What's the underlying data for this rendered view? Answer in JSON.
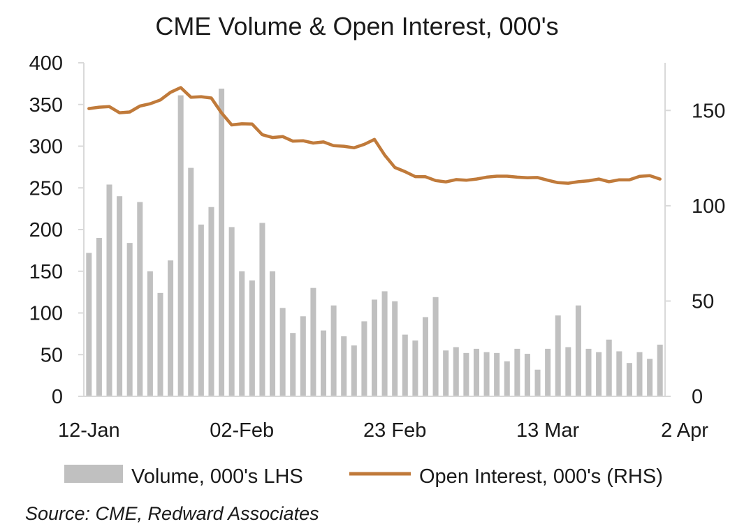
{
  "chart_data": {
    "type": "bar+line",
    "title": "CME Volume & Open Interest, 000's",
    "source": "Source: CME, Redward Associates",
    "x_tick_labels": [
      "12-Jan",
      "02-Feb",
      "23 Feb",
      "13 Mar",
      "2 Apr"
    ],
    "x_tick_index": [
      0,
      15,
      30,
      45,
      60
    ],
    "y_left": {
      "ylim": [
        0,
        400
      ],
      "ticks": [
        "0",
        "50",
        "100",
        "150",
        "200",
        "250",
        "300",
        "350",
        "400"
      ]
    },
    "y_right": {
      "ylim": [
        0,
        175
      ],
      "ticks": [
        "0",
        "50",
        "100",
        "150"
      ]
    },
    "grid": false,
    "legend_position": "bottom",
    "series": [
      {
        "name": "Volume, 000's LHS",
        "kind": "bar",
        "axis": "left",
        "color": "#c0c0c0",
        "values": [
          172,
          190,
          254,
          240,
          184,
          233,
          150,
          124,
          163,
          361,
          274,
          206,
          227,
          369,
          203,
          150,
          139,
          208,
          150,
          106,
          76,
          96,
          130,
          79,
          109,
          72,
          61,
          90,
          116,
          126,
          114,
          74,
          67,
          95,
          119,
          55,
          59,
          52,
          57,
          53,
          52,
          42,
          57,
          51,
          32,
          57,
          97,
          59,
          109,
          57,
          53,
          68,
          54,
          40,
          53,
          45,
          62
        ]
      },
      {
        "name": "Open Interest, 000's (RHS)",
        "kind": "line",
        "axis": "right",
        "color": "#c07a3a",
        "values": [
          151,
          151.7,
          152,
          148.8,
          149.2,
          152.3,
          153.5,
          155.5,
          159.5,
          162,
          156.9,
          157.2,
          156.5,
          148.7,
          142.4,
          143,
          142.9,
          137.3,
          135.8,
          136.3,
          133.9,
          134.1,
          132.9,
          133.5,
          131.5,
          131.2,
          130.4,
          132.2,
          134.8,
          126.6,
          120.1,
          117.9,
          115.3,
          115.2,
          113.2,
          112.5,
          113.7,
          113.4,
          114,
          115,
          115.5,
          115.5,
          115,
          114.7,
          114.8,
          113.4,
          112.1,
          111.8,
          112.6,
          113.1,
          114,
          112.6,
          113.6,
          113.6,
          115.4,
          115.8,
          114
        ]
      }
    ]
  }
}
